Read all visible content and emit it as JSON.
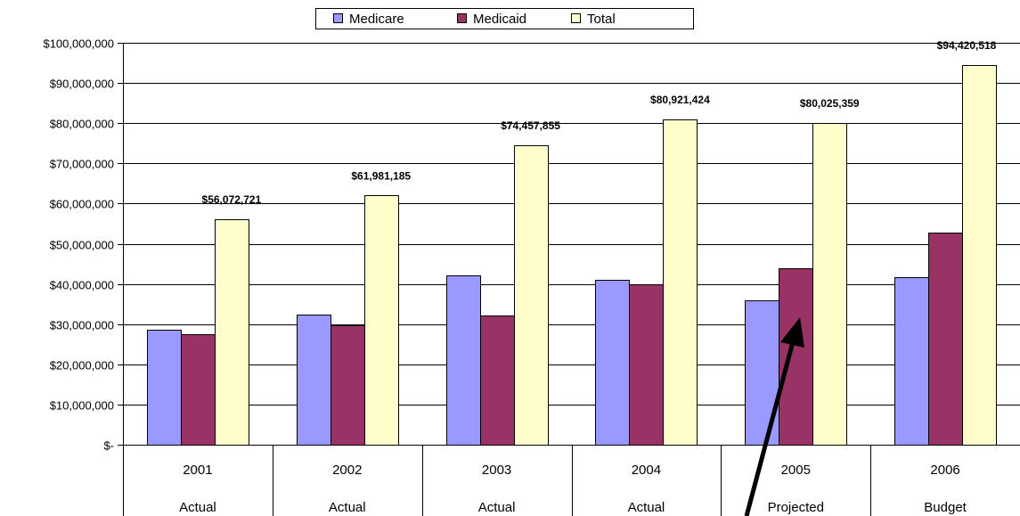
{
  "chart_data": {
    "type": "bar",
    "categories": [
      "2001",
      "2002",
      "2003",
      "2004",
      "2005",
      "2006"
    ],
    "category_sublabels": [
      "Actual",
      "Actual",
      "Actual",
      "Actual",
      "Projected",
      "Budget"
    ],
    "series": [
      {
        "name": "Medicare",
        "color": "#9999ff",
        "values": [
          28500000,
          32300000,
          42200000,
          41000000,
          35900000,
          41600000
        ]
      },
      {
        "name": "Medicaid",
        "color": "#993366",
        "values": [
          27600000,
          29700000,
          32200000,
          39900000,
          44000000,
          52800000
        ]
      },
      {
        "name": "Total",
        "color": "#ffffcc",
        "values": [
          56072721,
          61981185,
          74457855,
          80921424,
          80025359,
          94420518
        ]
      }
    ],
    "data_labels": [
      "$56,072,721",
      "$61,981,185",
      "$74,457,855",
      "$80,921,424",
      "$80,025,359",
      "$94,420,518"
    ],
    "ylim": [
      0,
      100000000
    ],
    "y_ticks": [
      {
        "value": 0,
        "label": "$-"
      },
      {
        "value": 10000000,
        "label": "$10,000,000"
      },
      {
        "value": 20000000,
        "label": "$20,000,000"
      },
      {
        "value": 30000000,
        "label": "$30,000,000"
      },
      {
        "value": 40000000,
        "label": "$40,000,000"
      },
      {
        "value": 50000000,
        "label": "$50,000,000"
      },
      {
        "value": 60000000,
        "label": "$60,000,000"
      },
      {
        "value": 70000000,
        "label": "$70,000,000"
      },
      {
        "value": 80000000,
        "label": "$80,000,000"
      },
      {
        "value": 90000000,
        "label": "$90,000,000"
      },
      {
        "value": 100000000,
        "label": "$100,000,000"
      }
    ],
    "grid": true,
    "legend_position": "top",
    "title": "",
    "xlabel": "",
    "ylabel": "",
    "annotation": {
      "type": "arrow",
      "points_to": "2005 Medicaid"
    }
  }
}
